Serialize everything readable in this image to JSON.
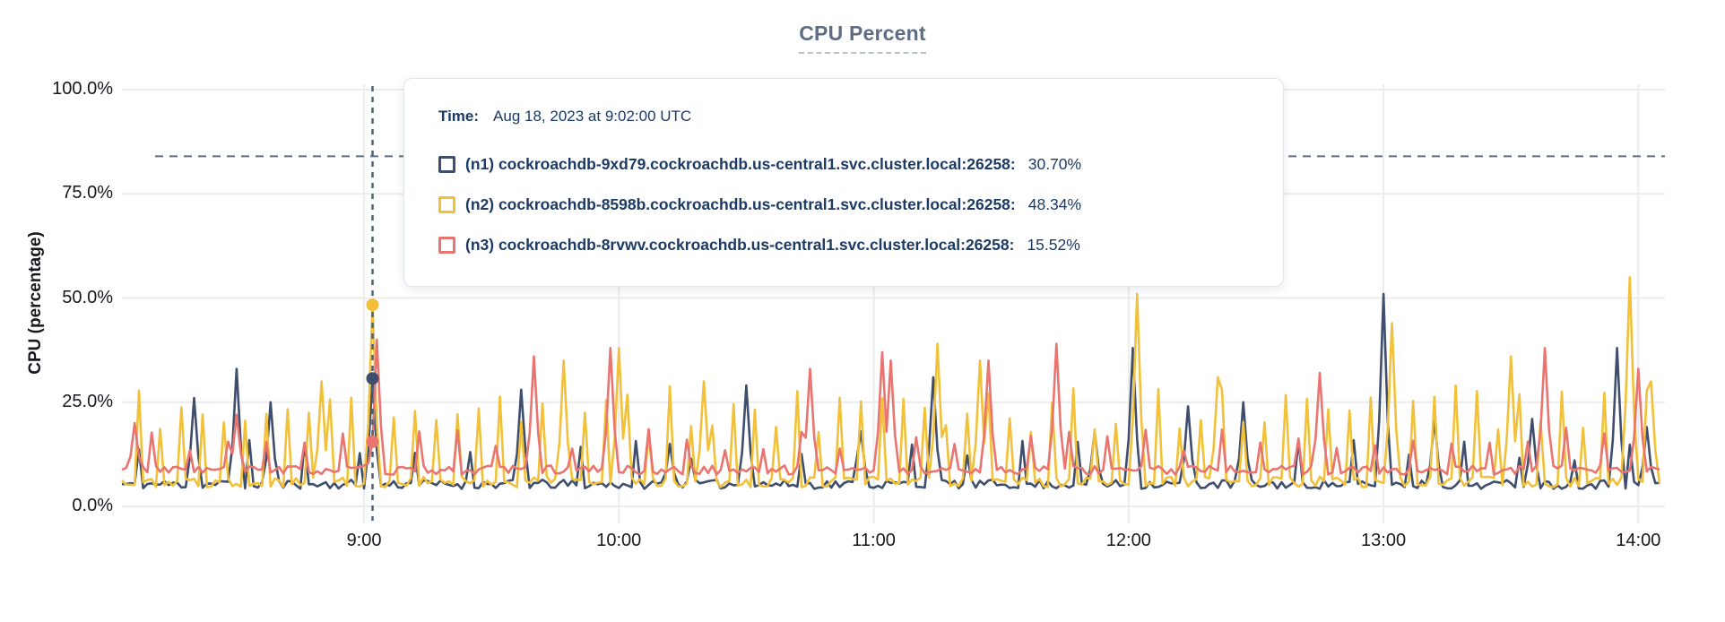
{
  "title": "CPU Percent",
  "y_axis": {
    "title": "CPU (percentage)",
    "ticks": [
      "100.0%",
      "75.0%",
      "50.0%",
      "25.0%",
      "0.0%"
    ]
  },
  "x_axis": {
    "ticks": [
      "9:00",
      "10:00",
      "11:00",
      "12:00",
      "13:00",
      "14:00"
    ]
  },
  "tooltip": {
    "time_label": "Time:",
    "time_value": "Aug 18, 2023 at 9:02:00 UTC",
    "rows": [
      {
        "name": "(n1) cockroachdb-9xd79.cockroachdb.us-central1.svc.cluster.local:26258:",
        "value": "30.70%"
      },
      {
        "name": "(n2) cockroachdb-8598b.cockroachdb.us-central1.svc.cluster.local:26258:",
        "value": "48.34%"
      },
      {
        "name": "(n3) cockroachdb-8rvwv.cockroachdb.us-central1.svc.cluster.local:26258:",
        "value": "15.52%"
      }
    ]
  },
  "chart_data": {
    "type": "line",
    "title": "CPU Percent",
    "xlabel": "",
    "ylabel": "CPU (percentage)",
    "ylim": [
      0,
      100
    ],
    "y_tick_values": [
      0,
      25,
      50,
      75,
      100
    ],
    "x_tick_labels": [
      "9:00",
      "10:00",
      "11:00",
      "12:00",
      "13:00",
      "14:00"
    ],
    "x_start": "8:03",
    "x_end": "14:05",
    "grid": true,
    "legend_position": "tooltip",
    "threshold_line": {
      "value": 84,
      "style": "dashed",
      "color": "#5c7082"
    },
    "crosshair": {
      "time": "9:02",
      "color": "#4e6175"
    },
    "highlight": {
      "time": "9:02",
      "values": [
        {
          "series": "n1",
          "value": 30.7
        },
        {
          "series": "n2",
          "value": 48.34
        },
        {
          "series": "n3",
          "value": 15.52
        }
      ]
    },
    "series": [
      {
        "id": "n1",
        "name": "(n1) cockroachdb-9xd79.cockroachdb.us-central1.svc.cluster.local:26258",
        "color": "#3f4e6d",
        "baseline": 4.2,
        "noise": 2.2,
        "cadence_min": 13,
        "phase": 6,
        "cadence_height": [
          11,
          16
        ],
        "seed": 11,
        "peaks": [
          [
            "8:20",
            26
          ],
          [
            "8:30",
            33
          ],
          [
            "8:38",
            25
          ],
          [
            "9:02",
            30.7
          ],
          [
            "9:37",
            28
          ],
          [
            "10:12",
            15
          ],
          [
            "10:30",
            29
          ],
          [
            "10:57",
            18
          ],
          [
            "11:14",
            31
          ],
          [
            "11:52",
            18
          ],
          [
            "12:01",
            38
          ],
          [
            "12:14",
            24
          ],
          [
            "12:27",
            25
          ],
          [
            "13:00",
            51
          ],
          [
            "13:12",
            21
          ],
          [
            "13:35",
            21
          ],
          [
            "13:55",
            38
          ],
          [
            "14:02",
            19
          ]
        ]
      },
      {
        "id": "n2",
        "name": "(n2) cockroachdb-8598b.cockroachdb.us-central1.svc.cluster.local:26258",
        "color": "#f2c139",
        "baseline": 4.6,
        "noise": 2.6,
        "cadence_min": 5,
        "phase": 2,
        "cadence_height": [
          17,
          29
        ],
        "seed": 22,
        "peaks": [
          [
            "8:50",
            30
          ],
          [
            "9:02",
            48.34
          ],
          [
            "9:47",
            35
          ],
          [
            "10:00",
            38
          ],
          [
            "10:20",
            30
          ],
          [
            "11:15",
            39
          ],
          [
            "11:25",
            35
          ],
          [
            "12:02",
            51
          ],
          [
            "12:21",
            31
          ],
          [
            "13:02",
            44
          ],
          [
            "13:30",
            36
          ],
          [
            "13:58",
            55
          ],
          [
            "14:03",
            30
          ]
        ]
      },
      {
        "id": "n3",
        "name": "(n3) cockroachdb-8rvwv.cockroachdb.us-central1.svc.cluster.local:26258",
        "color": "#e97470",
        "baseline": 7.6,
        "noise": 2.2,
        "cadence_min": 9,
        "phase": 4,
        "cadence_height": [
          13,
          19
        ],
        "seed": 33,
        "peaks": [
          [
            "8:06",
            20
          ],
          [
            "8:30",
            22
          ],
          [
            "9:02",
            15.52
          ],
          [
            "9:03",
            40
          ],
          [
            "9:40",
            36
          ],
          [
            "9:58",
            38
          ],
          [
            "10:45",
            33
          ],
          [
            "11:02",
            37
          ],
          [
            "11:04",
            35
          ],
          [
            "11:27",
            35
          ],
          [
            "11:43",
            39
          ],
          [
            "12:45",
            32
          ],
          [
            "13:38",
            38
          ],
          [
            "14:00",
            33
          ]
        ]
      }
    ]
  }
}
